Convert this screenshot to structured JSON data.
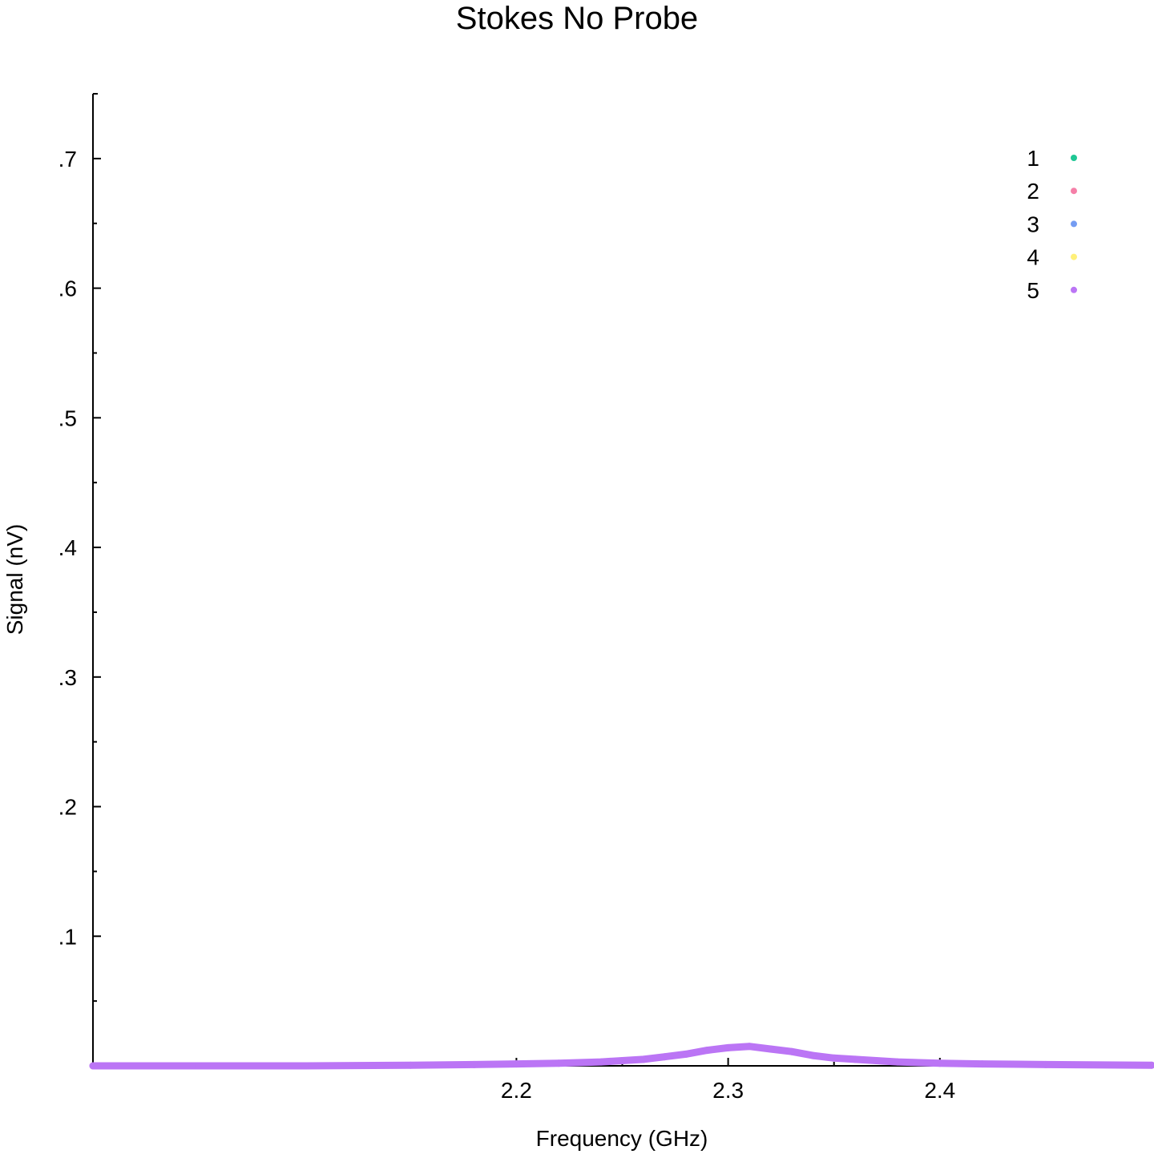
{
  "chart_data": {
    "type": "scatter",
    "title": "Stokes No Probe",
    "xlabel": "Frequency (GHz)",
    "ylabel": "Signal (nV)",
    "xlim": [
      2.0,
      2.5
    ],
    "ylim": [
      0.0,
      0.75
    ],
    "x_ticks": [
      {
        "value": 2.2,
        "label": "2.2"
      },
      {
        "value": 2.3,
        "label": "2.3"
      },
      {
        "value": 2.4,
        "label": "2.4"
      }
    ],
    "x_minor_ticks": [
      2.25,
      2.35
    ],
    "y_ticks": [
      {
        "value": 0.1,
        "label": ".1"
      },
      {
        "value": 0.2,
        "label": ".2"
      },
      {
        "value": 0.3,
        "label": ".3"
      },
      {
        "value": 0.4,
        "label": ".4"
      },
      {
        "value": 0.5,
        "label": ".5"
      },
      {
        "value": 0.6,
        "label": ".6"
      },
      {
        "value": 0.7,
        "label": ".7"
      }
    ],
    "y_minor_ticks": [
      0.05,
      0.15,
      0.25,
      0.35,
      0.45,
      0.55,
      0.65
    ],
    "grid": false,
    "legend_position": "top-right",
    "series": [
      {
        "name": "1",
        "color": "#1fc794",
        "x": [],
        "y": []
      },
      {
        "name": "2",
        "color": "#f57fa8",
        "x": [],
        "y": []
      },
      {
        "name": "3",
        "color": "#749cf2",
        "x": [],
        "y": []
      },
      {
        "name": "4",
        "color": "#fff07a",
        "x": [],
        "y": []
      },
      {
        "name": "5",
        "color": "#bb75f5",
        "x": [
          2.0,
          2.05,
          2.1,
          2.15,
          2.18,
          2.2,
          2.22,
          2.24,
          2.25,
          2.26,
          2.27,
          2.28,
          2.29,
          2.3,
          2.31,
          2.32,
          2.33,
          2.34,
          2.35,
          2.36,
          2.37,
          2.38,
          2.4,
          2.42,
          2.45,
          2.5
        ],
        "y": [
          0.0,
          0.0,
          0.0,
          0.0005,
          0.001,
          0.0015,
          0.002,
          0.003,
          0.004,
          0.005,
          0.007,
          0.009,
          0.012,
          0.014,
          0.015,
          0.013,
          0.011,
          0.008,
          0.006,
          0.005,
          0.004,
          0.003,
          0.002,
          0.0015,
          0.001,
          0.0005
        ]
      }
    ]
  }
}
